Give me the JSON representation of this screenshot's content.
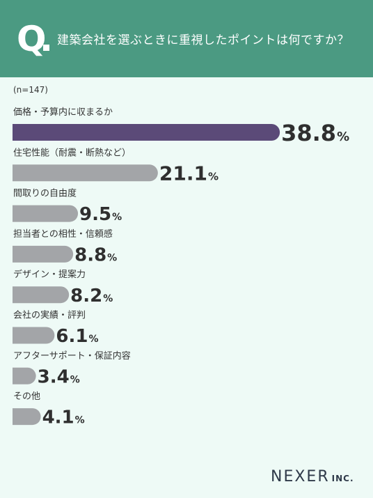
{
  "header": {
    "q_mark": "Q",
    "question": "建築会社を選ぶときに重視したポイントは何ですか？"
  },
  "sample": "(n=147)",
  "brand": {
    "name": "NEXER",
    "suffix": "INC."
  },
  "colors": {
    "header_bg": "#4b9a82",
    "page_bg": "#eefaf6",
    "top_bar": "#5b4a78",
    "other_bars": "#a3a5a8",
    "text": "#333333"
  },
  "chart_data": {
    "type": "bar",
    "orientation": "horizontal",
    "unit": "%",
    "categories": [
      "価格・予算内に収まるか",
      "住宅性能（耐震・断熱など）",
      "間取りの自由度",
      "担当者との相性・信頼感",
      "デザイン・提案力",
      "会社の実績・評判",
      "アフターサポート・保証内容",
      "その他"
    ],
    "values": [
      38.8,
      21.1,
      9.5,
      8.8,
      8.2,
      6.1,
      3.4,
      4.1
    ],
    "value_labels": [
      "38.8",
      "21.1",
      "9.5",
      "8.8",
      "8.2",
      "6.1",
      "3.4",
      "4.1"
    ],
    "legend": "none",
    "grid": false
  }
}
